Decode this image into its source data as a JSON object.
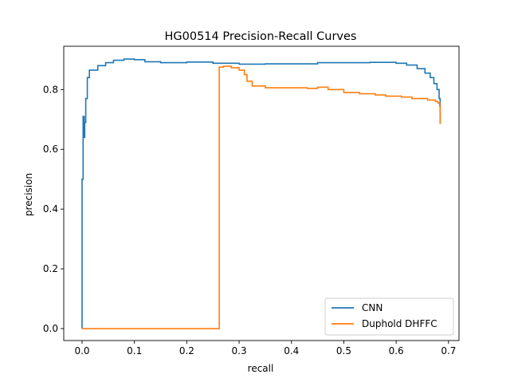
{
  "chart_data": {
    "type": "line",
    "title": "HG00514 Precision-Recall Curves",
    "xlabel": "recall",
    "ylabel": "precision",
    "xlim": [
      -0.035,
      0.72
    ],
    "ylim": [
      -0.04,
      0.945
    ],
    "xticks": [
      0.0,
      0.1,
      0.2,
      0.3,
      0.4,
      0.5,
      0.6,
      0.7
    ],
    "xtick_labels": [
      "0.0",
      "0.1",
      "0.2",
      "0.3",
      "0.4",
      "0.5",
      "0.6",
      "0.7"
    ],
    "yticks": [
      0.0,
      0.2,
      0.4,
      0.6,
      0.8
    ],
    "ytick_labels": [
      "0.0",
      "0.2",
      "0.4",
      "0.6",
      "0.8"
    ],
    "grid": false,
    "legend_position": "lower-right",
    "series": [
      {
        "name": "CNN",
        "color": "#1f77b4",
        "step": true,
        "points": [
          [
            0.0,
            0.0
          ],
          [
            0.0,
            0.5
          ],
          [
            0.002,
            0.5
          ],
          [
            0.002,
            0.71
          ],
          [
            0.004,
            0.64
          ],
          [
            0.005,
            0.69
          ],
          [
            0.007,
            0.69
          ],
          [
            0.007,
            0.77
          ],
          [
            0.01,
            0.77
          ],
          [
            0.01,
            0.84
          ],
          [
            0.014,
            0.84
          ],
          [
            0.014,
            0.865
          ],
          [
            0.03,
            0.865
          ],
          [
            0.03,
            0.88
          ],
          [
            0.045,
            0.88
          ],
          [
            0.045,
            0.89
          ],
          [
            0.06,
            0.89
          ],
          [
            0.06,
            0.898
          ],
          [
            0.08,
            0.898
          ],
          [
            0.08,
            0.902
          ],
          [
            0.1,
            0.9
          ],
          [
            0.12,
            0.893
          ],
          [
            0.15,
            0.89
          ],
          [
            0.2,
            0.892
          ],
          [
            0.25,
            0.888
          ],
          [
            0.3,
            0.885
          ],
          [
            0.35,
            0.886
          ],
          [
            0.4,
            0.886
          ],
          [
            0.45,
            0.89
          ],
          [
            0.5,
            0.89
          ],
          [
            0.55,
            0.891
          ],
          [
            0.6,
            0.888
          ],
          [
            0.62,
            0.882
          ],
          [
            0.64,
            0.87
          ],
          [
            0.655,
            0.855
          ],
          [
            0.665,
            0.84
          ],
          [
            0.672,
            0.82
          ],
          [
            0.678,
            0.8
          ],
          [
            0.682,
            0.77
          ],
          [
            0.684,
            0.72
          ],
          [
            0.684,
            0.685
          ]
        ]
      },
      {
        "name": "Duphold DHFFC",
        "color": "#ff7f0e",
        "step": true,
        "points": [
          [
            0.0,
            0.0
          ],
          [
            0.262,
            0.0
          ],
          [
            0.262,
            0.875
          ],
          [
            0.27,
            0.878
          ],
          [
            0.285,
            0.873
          ],
          [
            0.3,
            0.865
          ],
          [
            0.31,
            0.85
          ],
          [
            0.315,
            0.828
          ],
          [
            0.325,
            0.812
          ],
          [
            0.35,
            0.806
          ],
          [
            0.4,
            0.806
          ],
          [
            0.43,
            0.804
          ],
          [
            0.45,
            0.808
          ],
          [
            0.47,
            0.8
          ],
          [
            0.5,
            0.79
          ],
          [
            0.53,
            0.786
          ],
          [
            0.56,
            0.782
          ],
          [
            0.58,
            0.778
          ],
          [
            0.61,
            0.775
          ],
          [
            0.63,
            0.77
          ],
          [
            0.66,
            0.765
          ],
          [
            0.675,
            0.76
          ],
          [
            0.68,
            0.755
          ],
          [
            0.683,
            0.745
          ],
          [
            0.684,
            0.7
          ],
          [
            0.684,
            0.685
          ]
        ]
      }
    ]
  }
}
